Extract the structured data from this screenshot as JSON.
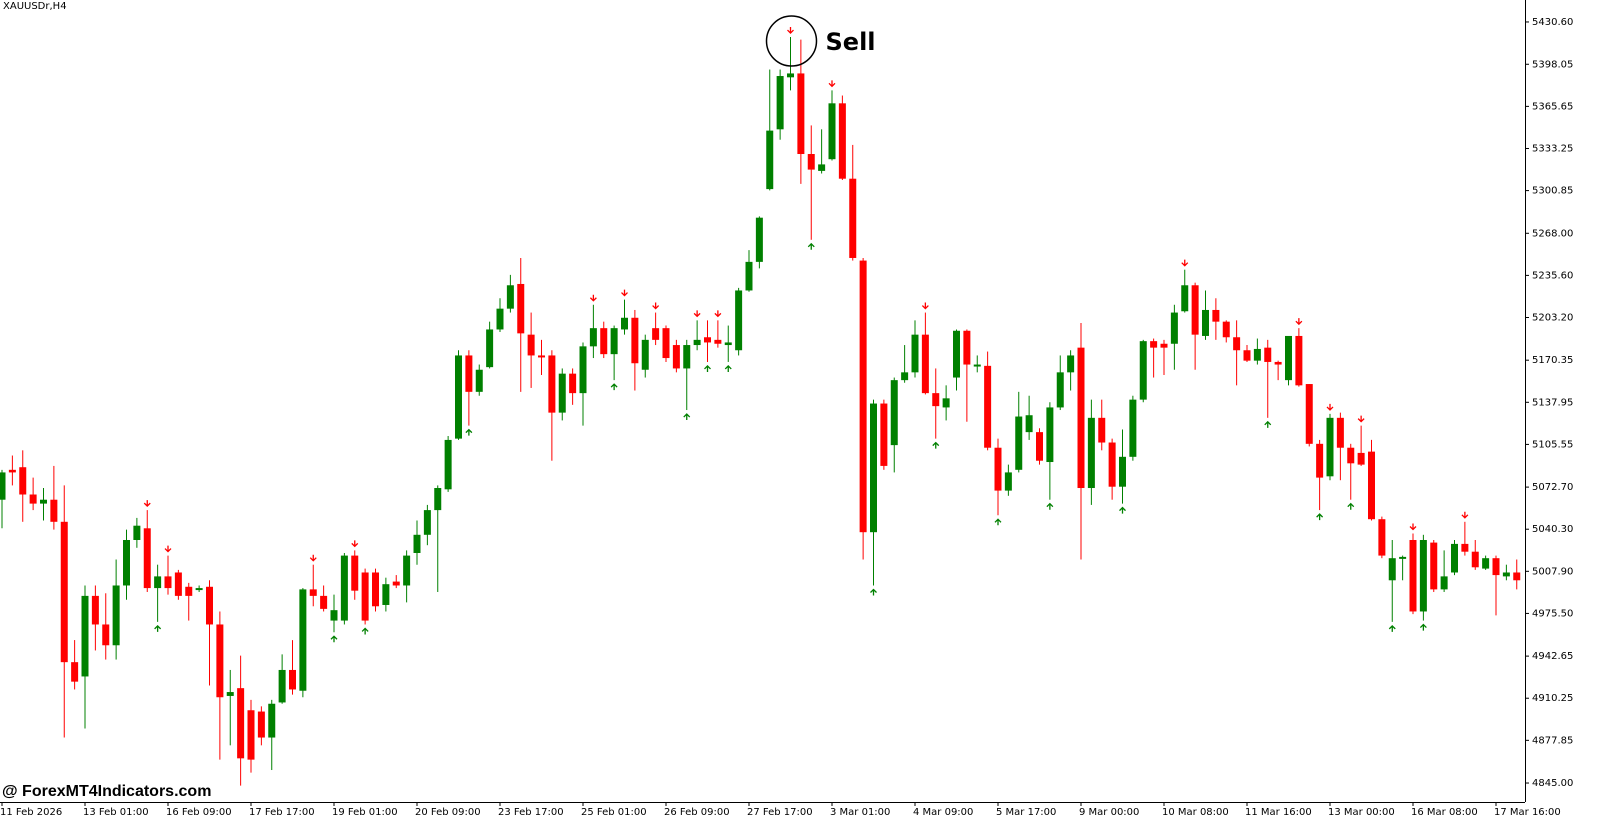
{
  "chart_data": {
    "type": "candlestick",
    "title": "XAUUSDr,H4",
    "watermark": "@ ForexMT4Indicators.com",
    "annotation": {
      "text": "Sell",
      "index": 76
    },
    "up_color": "#008000",
    "down_color": "#ff0000",
    "grid": false,
    "categories": [
      "11 Feb 2026",
      null,
      null,
      null,
      null,
      null,
      null,
      null,
      "13 Feb 01:00",
      null,
      null,
      null,
      null,
      null,
      null,
      null,
      "16 Feb 09:00",
      null,
      null,
      null,
      null,
      null,
      null,
      null,
      "17 Feb 17:00",
      null,
      null,
      null,
      null,
      null,
      null,
      null,
      "19 Feb 01:00",
      null,
      null,
      null,
      null,
      null,
      null,
      null,
      "20 Feb 09:00",
      null,
      null,
      null,
      null,
      null,
      null,
      null,
      "23 Feb 17:00",
      null,
      null,
      null,
      null,
      null,
      null,
      null,
      "25 Feb 01:00",
      null,
      null,
      null,
      null,
      null,
      null,
      null,
      "26 Feb 09:00",
      null,
      null,
      null,
      null,
      null,
      null,
      null,
      "27 Feb 17:00",
      null,
      null,
      null,
      null,
      null,
      null,
      null,
      "3 Mar 01:00",
      null,
      null,
      null,
      null,
      null,
      null,
      null,
      "4 Mar 09:00",
      null,
      null,
      null,
      null,
      null,
      null,
      null,
      "5 Mar 17:00",
      null,
      null,
      null,
      null,
      null,
      null,
      null,
      "9 Mar 00:00",
      null,
      null,
      null,
      null,
      null,
      null,
      null,
      "10 Mar 08:00",
      null,
      null,
      null,
      null,
      null,
      null,
      null,
      "11 Mar 16:00",
      null,
      null,
      null,
      null,
      null,
      null,
      null,
      "13 Mar 00:00",
      null,
      null,
      null,
      null,
      null,
      null,
      null,
      "16 Mar 08:00",
      null,
      null,
      null,
      null,
      null,
      null,
      null,
      "17 Mar 16:00",
      null,
      null
    ],
    "open": [
      5063,
      5086,
      5088,
      5067,
      5060,
      5063,
      5046,
      4938,
      4927,
      4989,
      4967,
      4951,
      4997,
      5032,
      5041,
      4995,
      5004,
      5007,
      4996,
      4994,
      4996,
      4967,
      4912,
      4918,
      4901,
      4900,
      4880,
      4907,
      4932,
      4916,
      4994,
      4989,
      4970,
      4970,
      5020,
      5007,
      5007,
      4982,
      5000,
      4997,
      5022,
      5036,
      5055,
      5071,
      5110,
      5174,
      5146,
      5165,
      5194,
      5210,
      5229,
      5190,
      5174,
      5174,
      5130,
      5160,
      5145,
      5181,
      5195,
      5175,
      5194,
      5203,
      5163,
      5195,
      5195,
      5182,
      5164,
      5182,
      5188,
      5186,
      5182,
      5178,
      5224,
      5246,
      5302,
      5348,
      5388,
      5391,
      5329,
      5316,
      5325,
      5368,
      5310,
      5247,
      5038,
      5137,
      5105,
      5155,
      5161,
      5190,
      5145,
      5134,
      5157,
      5193,
      5166,
      5166,
      5103,
      5070,
      5086,
      5115,
      5115,
      5092,
      5134,
      5161,
      5180,
      5072,
      5126,
      5107,
      5073,
      5096,
      5140,
      5185,
      5183,
      5183,
      5208,
      5228,
      5189,
      5209,
      5200,
      5188,
      5178,
      5170,
      5180,
      5169,
      5155,
      5189,
      5152,
      5106,
      5081,
      5126,
      5103,
      5099,
      5100,
      5048,
      5001,
      5018,
      5032,
      4977,
      5030,
      4994,
      5007,
      5029,
      5023,
      5010,
      5018,
      5004,
      5007
    ],
    "high": [
      5086,
      5097,
      5101,
      5080,
      5072,
      5089,
      5074,
      4955,
      4997,
      4997,
      4991,
      5017,
      5040,
      5049,
      5055,
      5013,
      5020,
      5009,
      4999,
      4997,
      5001,
      4977,
      4932,
      4943,
      4909,
      4904,
      4909,
      4944,
      4955,
      4995,
      5013,
      4997,
      4990,
      5022,
      5024,
      5010,
      5010,
      5003,
      5005,
      5024,
      5047,
      5059,
      5074,
      5112,
      5178,
      5178,
      5167,
      5200,
      5218,
      5236,
      5249,
      5207,
      5186,
      5178,
      5164,
      5164,
      5184,
      5213,
      5200,
      5197,
      5217,
      5209,
      5190,
      5207,
      5197,
      5186,
      5186,
      5201,
      5201,
      5201,
      5197,
      5226,
      5255,
      5281,
      5394,
      5394,
      5419,
      5417,
      5351,
      5348,
      5378,
      5374,
      5336,
      5249,
      5140,
      5140,
      5157,
      5182,
      5201,
      5207,
      5164,
      5151,
      5194,
      5194,
      5174,
      5177,
      5110,
      5090,
      5146,
      5143,
      5118,
      5138,
      5174,
      5178,
      5199,
      5140,
      5140,
      5110,
      5117,
      5143,
      5186,
      5187,
      5186,
      5213,
      5240,
      5230,
      5224,
      5218,
      5201,
      5201,
      5182,
      5187,
      5186,
      5170,
      5189,
      5195,
      5152,
      5109,
      5129,
      5130,
      5106,
      5120,
      5109,
      5050,
      5032,
      5020,
      5037,
      5036,
      5032,
      5024,
      5032,
      5046,
      5032,
      5020,
      5020,
      5013,
      5017
    ],
    "low": [
      5041,
      5074,
      5046,
      5055,
      5047,
      5040,
      4880,
      4917,
      4887,
      4947,
      4940,
      4940,
      4986,
      5026,
      4992,
      4969,
      4990,
      4986,
      4970,
      4992,
      4920,
      4863,
      4874,
      4843,
      4853,
      4874,
      4855,
      4906,
      4913,
      4911,
      4981,
      4977,
      4961,
      4967,
      4986,
      4967,
      4977,
      4977,
      4995,
      4984,
      5013,
      5028,
      4992,
      5069,
      5109,
      5120,
      5143,
      5164,
      5192,
      5207,
      5146,
      5149,
      5159,
      5093,
      5124,
      5136,
      5120,
      5172,
      5172,
      5155,
      5190,
      5147,
      5157,
      5182,
      5169,
      5161,
      5132,
      5178,
      5169,
      5180,
      5169,
      5174,
      5223,
      5241,
      5301,
      5340,
      5378,
      5306,
      5263,
      5314,
      5324,
      5309,
      5247,
      5017,
      4997,
      5086,
      5084,
      5153,
      5157,
      5144,
      5110,
      5124,
      5147,
      5123,
      5161,
      5101,
      5051,
      5066,
      5084,
      5109,
      5090,
      5063,
      5132,
      5147,
      5017,
      5059,
      5101,
      5063,
      5060,
      5093,
      5138,
      5157,
      5159,
      5163,
      5207,
      5163,
      5186,
      5186,
      5184,
      5151,
      5169,
      5167,
      5126,
      5155,
      5151,
      5150,
      5104,
      5055,
      5078,
      5078,
      5063,
      5089,
      5047,
      5018,
      4969,
      5001,
      4975,
      4970,
      4992,
      4992,
      5005,
      5020,
      5009,
      5009,
      4974,
      5001,
      4994
    ],
    "close": [
      5084,
      5084,
      5067,
      5060,
      5063,
      5046,
      4938,
      4923,
      4989,
      4967,
      4951,
      4997,
      5032,
      5043,
      4995,
      5004,
      4995,
      4989,
      4989,
      4995,
      4967,
      4911,
      4915,
      4864,
      4863,
      4880,
      4906,
      4932,
      4917,
      4994,
      4989,
      4979,
      4978,
      5020,
      4993,
      4970,
      4981,
      4998,
      4997,
      5020,
      5036,
      5055,
      5072,
      5109,
      5174,
      5146,
      5163,
      5194,
      5210,
      5228,
      5191,
      5174,
      5173,
      5130,
      5160,
      5145,
      5181,
      5195,
      5175,
      5195,
      5203,
      5168,
      5186,
      5186,
      5172,
      5164,
      5182,
      5186,
      5184,
      5183,
      5184,
      5224,
      5246,
      5280,
      5347,
      5389,
      5391,
      5329,
      5317,
      5321,
      5368,
      5310,
      5249,
      5038,
      5137,
      5089,
      5155,
      5161,
      5190,
      5145,
      5135,
      5141,
      5193,
      5167,
      5167,
      5103,
      5070,
      5084,
      5127,
      5128,
      5093,
      5134,
      5161,
      5174,
      5072,
      5126,
      5107,
      5073,
      5096,
      5140,
      5185,
      5180,
      5180,
      5207,
      5228,
      5190,
      5209,
      5200,
      5188,
      5178,
      5170,
      5179,
      5169,
      5167,
      5189,
      5151,
      5106,
      5080,
      5126,
      5103,
      5091,
      5090,
      5048,
      5020,
      5018,
      5019,
      4977,
      5032,
      4994,
      5004,
      5029,
      5023,
      5011,
      5018,
      5005,
      5007,
      5001
    ],
    "sell_signals": [
      14,
      16,
      30,
      34,
      57,
      60,
      63,
      67,
      69,
      76,
      80,
      89,
      114,
      125,
      128,
      131,
      136,
      141
    ],
    "buy_signals": [
      15,
      32,
      35,
      45,
      59,
      66,
      68,
      70,
      78,
      84,
      90,
      96,
      101,
      108,
      122,
      127,
      130,
      134,
      137
    ],
    "ylim": [
      4830.4,
      5447.5
    ],
    "yticks": [
      {
        "value": 5430.6,
        "label": "5430.60"
      },
      {
        "value": 5398.05,
        "label": "5398.05"
      },
      {
        "value": 5365.65,
        "label": "5365.65"
      },
      {
        "value": 5333.25,
        "label": "5333.25"
      },
      {
        "value": 5300.85,
        "label": "5300.85"
      },
      {
        "value": 5268,
        "label": "5268.00"
      },
      {
        "value": 5235.6,
        "label": "5235.60"
      },
      {
        "value": 5203.2,
        "label": "5203.20"
      },
      {
        "value": 5170.35,
        "label": "5170.35"
      },
      {
        "value": 5137.95,
        "label": "5137.95"
      },
      {
        "value": 5105.55,
        "label": "5105.55"
      },
      {
        "value": 5072.7,
        "label": "5072.70"
      },
      {
        "value": 5040.3,
        "label": "5040.30"
      },
      {
        "value": 5007.9,
        "label": "5007.90"
      },
      {
        "value": 4975.5,
        "label": "4975.50"
      },
      {
        "value": 4942.65,
        "label": "4942.65"
      },
      {
        "value": 4910.25,
        "label": "4910.25"
      },
      {
        "value": 4877.85,
        "label": "4877.85"
      },
      {
        "value": 4845,
        "label": "4845.00"
      }
    ]
  }
}
